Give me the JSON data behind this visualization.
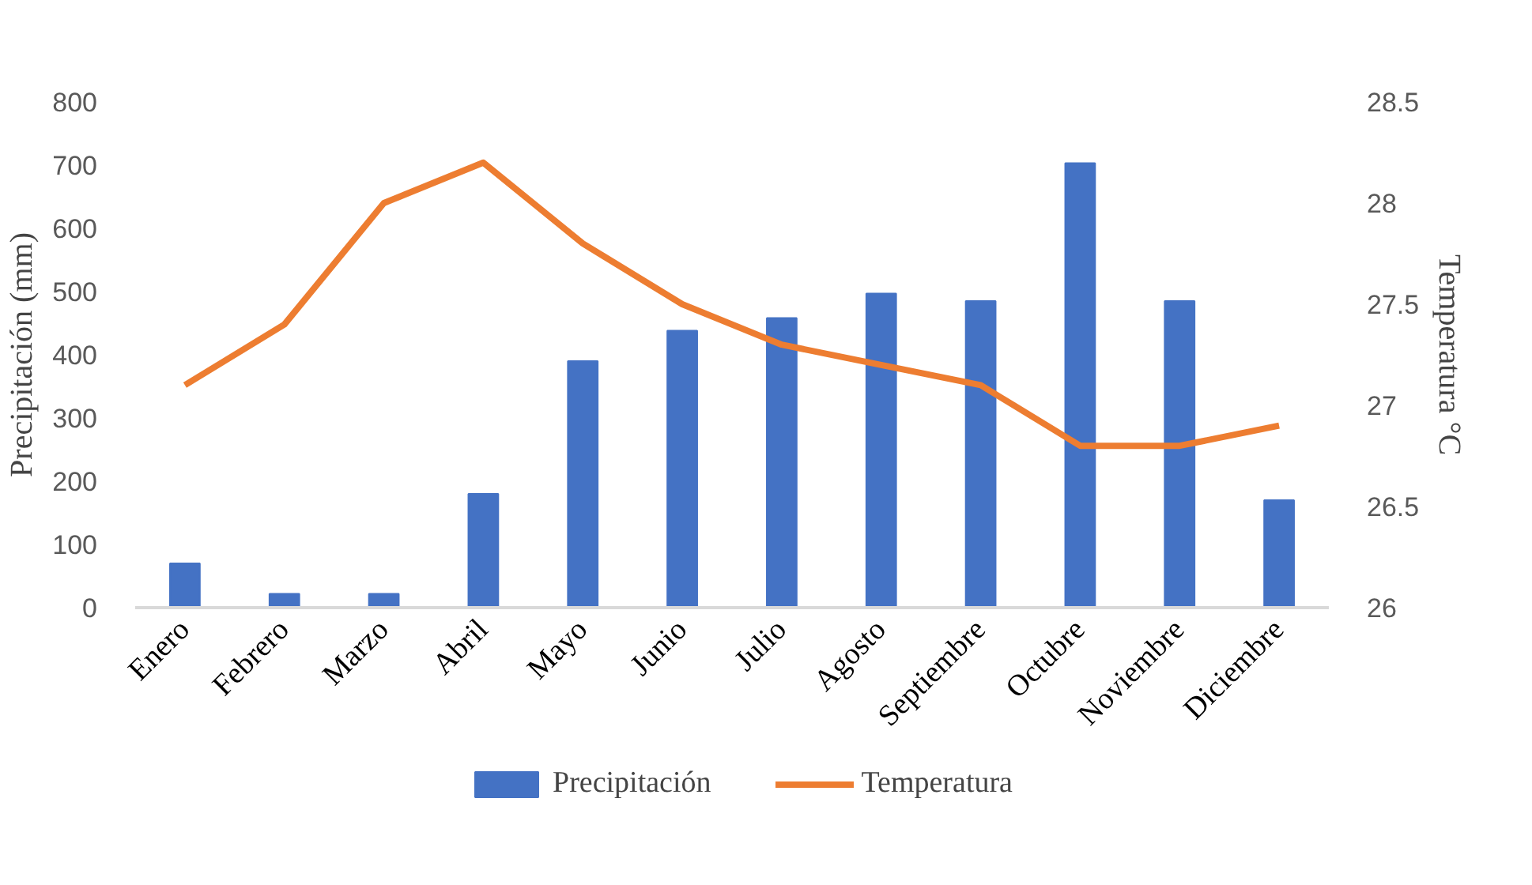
{
  "chart_data": {
    "type": "bar",
    "ylabel": "Precipitación (mm)",
    "y2label": "Temperatura °C",
    "categories": [
      "Enero",
      "Febrero",
      "Marzo",
      "Abril",
      "Mayo",
      "Junio",
      "Julio",
      "Agosto",
      "Septiembre",
      "Octubre",
      "Noviembre",
      "Diciembre"
    ],
    "series": [
      {
        "name": "Precipitación",
        "color": "#4472c4",
        "values": [
          70,
          22,
          22,
          180,
          390,
          438,
          458,
          497,
          485,
          703,
          485,
          170
        ]
      },
      {
        "name": "Temperatura",
        "type": "line",
        "axis": "y2",
        "color": "#ed7d31",
        "values": [
          27.1,
          27.4,
          28.0,
          28.2,
          27.8,
          27.5,
          27.3,
          27.2,
          27.1,
          26.8,
          26.8,
          26.9
        ]
      }
    ],
    "ylim": [
      0,
      800
    ],
    "yticks": [
      0,
      100,
      200,
      300,
      400,
      500,
      600,
      700,
      800
    ],
    "y2lim": [
      26,
      28.5
    ],
    "y2ticks": [
      26,
      {
        "value": 26.5,
        "label": "26.5"
      },
      27,
      {
        "value": 27.5,
        "label": "27.5"
      },
      28,
      {
        "value": 28.5,
        "label": "28.5"
      }
    ],
    "grid": false,
    "legend": "bottom"
  }
}
